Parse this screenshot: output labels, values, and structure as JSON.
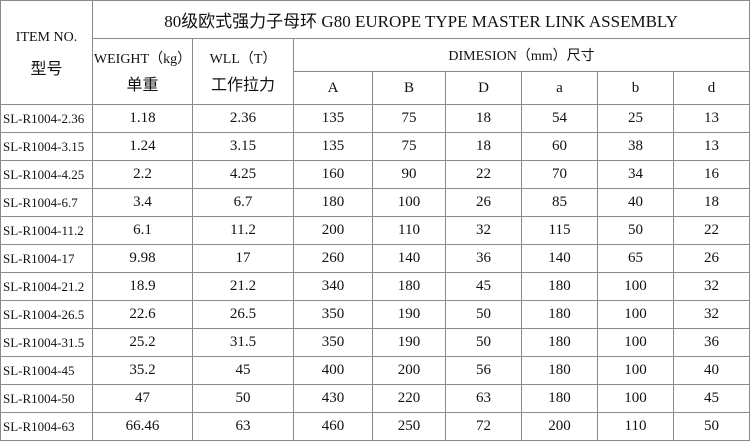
{
  "title": "80级欧式强力子母环  G80 EUROPE TYPE MASTER LINK ASSEMBLY",
  "headers": {
    "item_en": "ITEM NO.",
    "item_cn": "型号",
    "weight_en": "WEIGHT（kg）",
    "weight_cn": "单重",
    "wll_en": "WLL（T）",
    "wll_cn": "工作拉力",
    "dimension": "DIMESION（mm）尺寸",
    "dims": [
      "A",
      "B",
      "D",
      "a",
      "b",
      "d"
    ]
  },
  "rows": [
    [
      "SL-R1004-2.36",
      "1.18",
      "2.36",
      "135",
      "75",
      "18",
      "54",
      "25",
      "13"
    ],
    [
      "SL-R1004-3.15",
      "1.24",
      "3.15",
      "135",
      "75",
      "18",
      "60",
      "38",
      "13"
    ],
    [
      "SL-R1004-4.25",
      "2.2",
      "4.25",
      "160",
      "90",
      "22",
      "70",
      "34",
      "16"
    ],
    [
      "SL-R1004-6.7",
      "3.4",
      "6.7",
      "180",
      "100",
      "26",
      "85",
      "40",
      "18"
    ],
    [
      "SL-R1004-11.2",
      "6.1",
      "11.2",
      "200",
      "110",
      "32",
      "115",
      "50",
      "22"
    ],
    [
      "SL-R1004-17",
      "9.98",
      "17",
      "260",
      "140",
      "36",
      "140",
      "65",
      "26"
    ],
    [
      "SL-R1004-21.2",
      "18.9",
      "21.2",
      "340",
      "180",
      "45",
      "180",
      "100",
      "32"
    ],
    [
      "SL-R1004-26.5",
      "22.6",
      "26.5",
      "350",
      "190",
      "50",
      "180",
      "100",
      "32"
    ],
    [
      "SL-R1004-31.5",
      "25.2",
      "31.5",
      "350",
      "190",
      "50",
      "180",
      "100",
      "36"
    ],
    [
      "SL-R1004-45",
      "35.2",
      "45",
      "400",
      "200",
      "56",
      "180",
      "100",
      "40"
    ],
    [
      "SL-R1004-50",
      "47",
      "50",
      "430",
      "220",
      "63",
      "180",
      "100",
      "45"
    ],
    [
      "SL-R1004-63",
      "66.46",
      "63",
      "460",
      "250",
      "72",
      "200",
      "110",
      "50"
    ]
  ]
}
